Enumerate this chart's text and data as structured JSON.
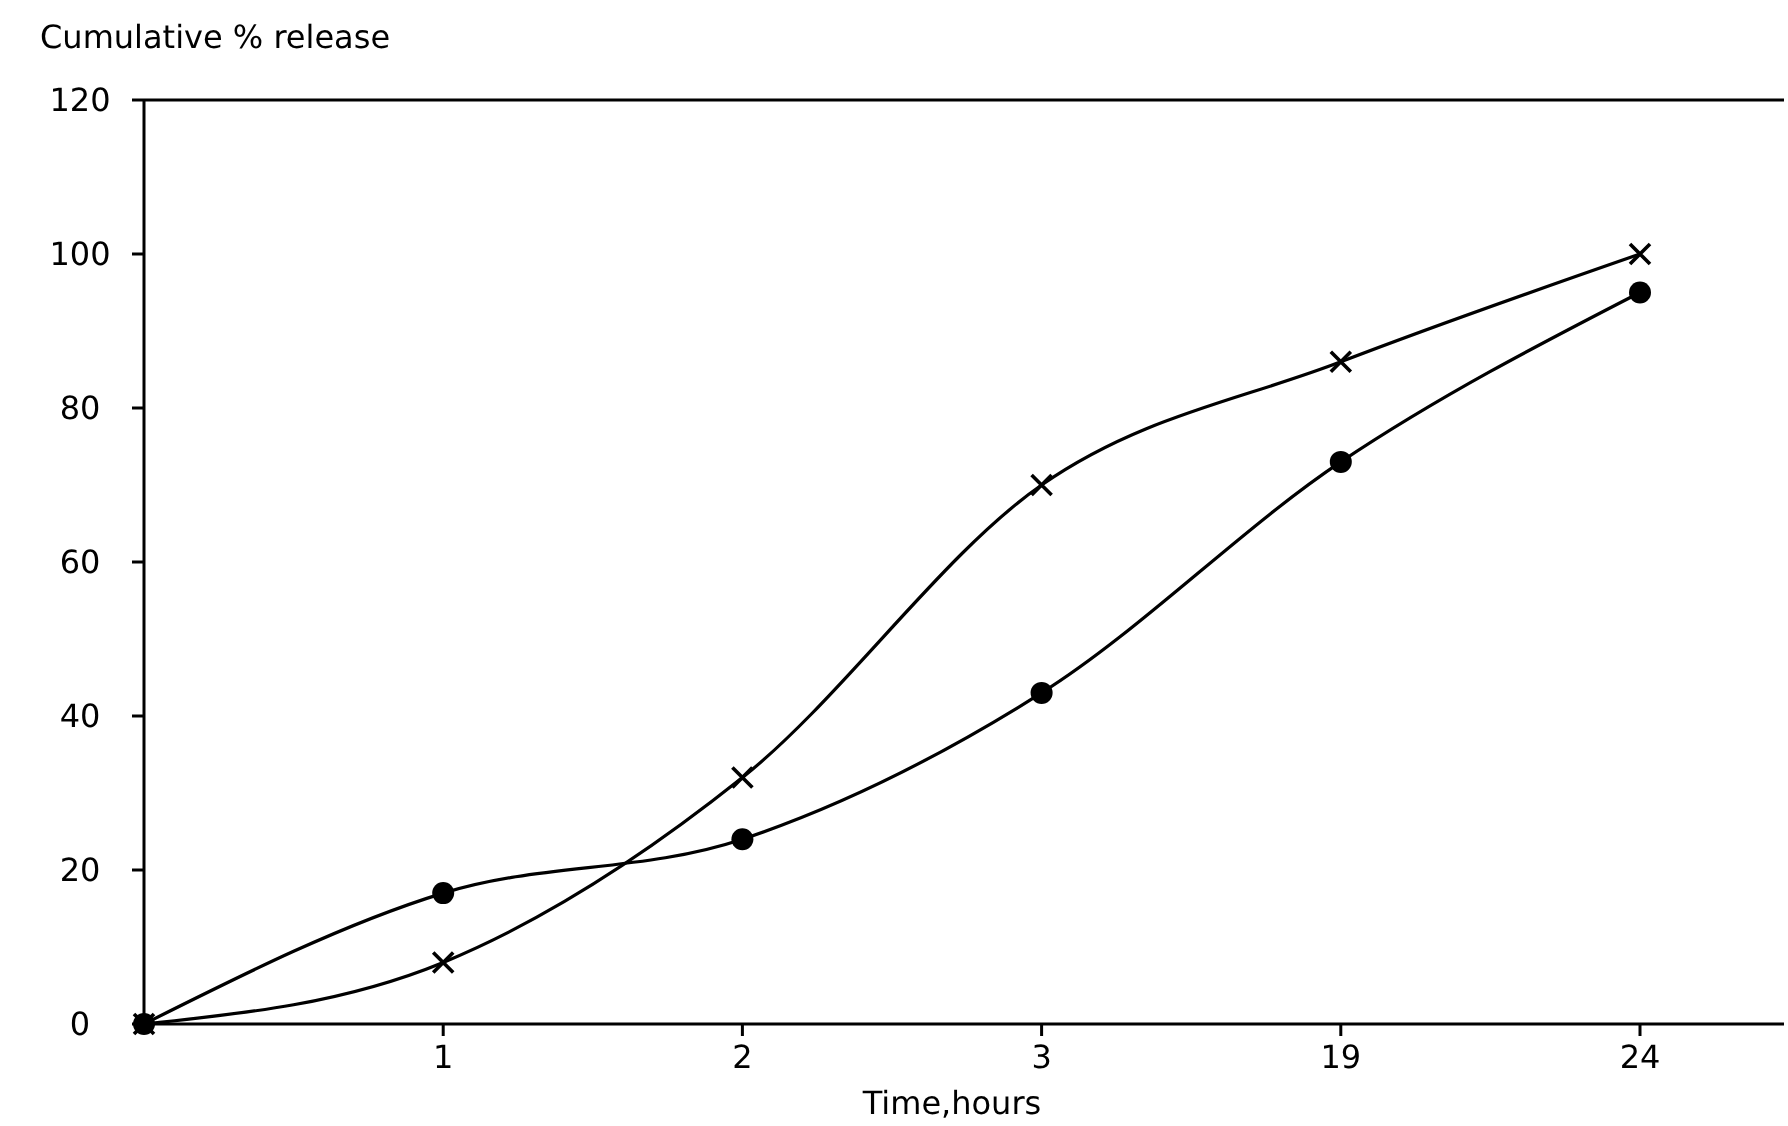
{
  "chart_data": {
    "type": "line",
    "ylabel": "Cumulative % release",
    "xlabel": "Time,hours",
    "categories": [
      null,
      "1",
      "2",
      "3",
      "19",
      "24"
    ],
    "ylim": [
      0,
      120
    ],
    "yticks": [
      0,
      20,
      40,
      60,
      80,
      100,
      120
    ],
    "grid": false,
    "series": [
      {
        "color": "#000000",
        "marker": "cross",
        "values": [
          0,
          8,
          32,
          70,
          86,
          100
        ]
      },
      {
        "color": "#000000",
        "marker": "circle",
        "values": [
          0,
          17,
          24,
          43,
          73,
          95
        ]
      }
    ]
  }
}
